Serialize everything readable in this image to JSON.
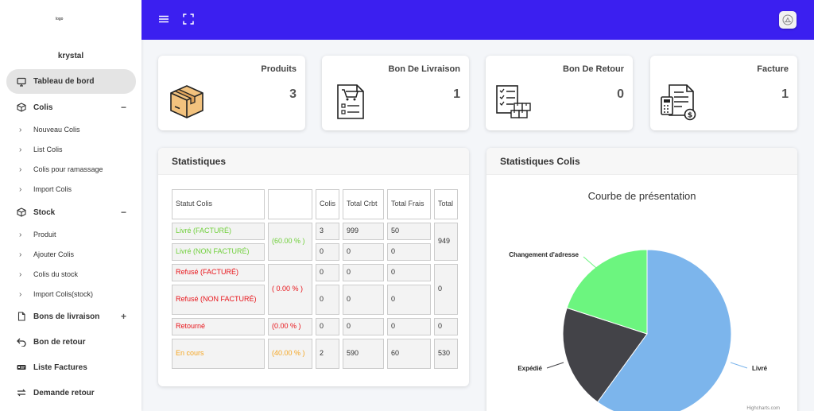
{
  "sidebar": {
    "logo": "logo",
    "username": "krystal",
    "items": [
      {
        "label": "Tableau de bord"
      },
      {
        "label": "Colis",
        "toggle": "−"
      },
      {
        "label": "Nouveau Colis"
      },
      {
        "label": "List Colis"
      },
      {
        "label": "Colis pour ramassage"
      },
      {
        "label": "Import Colis"
      },
      {
        "label": "Stock",
        "toggle": "−"
      },
      {
        "label": "Produit"
      },
      {
        "label": "Ajouter Colis"
      },
      {
        "label": "Colis du stock"
      },
      {
        "label": "Import Colis(stock)"
      },
      {
        "label": "Bons de livraison",
        "toggle": "+"
      },
      {
        "label": "Bon de retour"
      },
      {
        "label": "Liste Factures"
      },
      {
        "label": "Demande retour"
      }
    ]
  },
  "cards": [
    {
      "title": "Produits",
      "value": "3"
    },
    {
      "title": "Bon De Livraison",
      "value": "1"
    },
    {
      "title": "Bon De Retour",
      "value": "0"
    },
    {
      "title": "Facture",
      "value": "1"
    }
  ],
  "statistiques": {
    "title": "Statistiques",
    "headers": {
      "statut": "Statut Colis",
      "colis": "Colis",
      "crbt": "Total Crbt",
      "frais": "Total Frais",
      "total": "Total"
    },
    "livre_facture": "Livré (FACTURÉ)",
    "livre_non_facture": "Livré (NON FACTURÉ)",
    "livre_pct": "(60.00 % )",
    "livre_total": "949",
    "livre_f": {
      "colis": "3",
      "crbt": "999",
      "frais": "50"
    },
    "livre_nf": {
      "colis": "0",
      "crbt": "0",
      "frais": "0"
    },
    "refuse_facture": "Refusé (FACTURÉ)",
    "refuse_non_facture": "Refusé (NON FACTURÉ)",
    "refuse_pct": "( 0.00 % )",
    "refuse_total": "0",
    "refuse_f": {
      "colis": "0",
      "crbt": "0",
      "frais": "0"
    },
    "refuse_nf": {
      "colis": "0",
      "crbt": "0",
      "frais": "0"
    },
    "retourne": "Retourné",
    "retourne_pct": "(0.00 % )",
    "retourne_vals": {
      "colis": "0",
      "crbt": "0",
      "frais": "0",
      "total": "0"
    },
    "en_cours": "En cours",
    "en_cours_pct": "(40.00 % )",
    "en_cours_vals": {
      "colis": "2",
      "crbt": "590",
      "frais": "60",
      "total": "530"
    }
  },
  "stat_colis": {
    "title": "Statistiques Colis",
    "credits": "Highcharts.com"
  },
  "chart_data": {
    "type": "pie",
    "title": "Courbe de présentation",
    "labels": [
      "Livré",
      "Expédié",
      "Changement d'adresse"
    ],
    "values": [
      60,
      20,
      20
    ],
    "colors": [
      "#7cb5ec",
      "#434348",
      "#6cf57f"
    ],
    "legend": "none"
  }
}
